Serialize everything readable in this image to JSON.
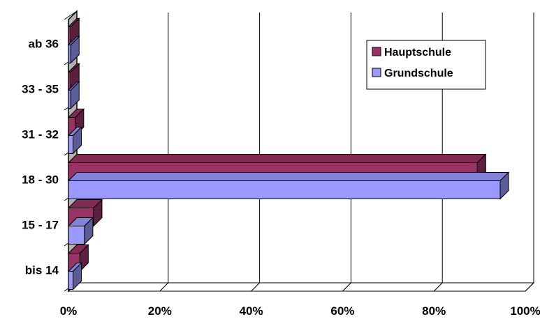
{
  "chart_data": {
    "type": "bar",
    "orientation": "horizontal",
    "style": "3d",
    "categories": [
      "ab 36",
      "33 - 35",
      "31 - 32",
      "18 - 30",
      "15 - 17",
      "bis 14"
    ],
    "series": [
      {
        "name": "Hauptschule",
        "color": "#993366",
        "values": [
          0.5,
          0.5,
          1.5,
          89.5,
          5.5,
          2.5
        ]
      },
      {
        "name": "Grundschule",
        "color": "#9999ff",
        "values": [
          0.5,
          0.5,
          1.0,
          94.5,
          3.5,
          1.0
        ]
      }
    ],
    "xlim": [
      0,
      100
    ],
    "x_ticks": [
      "0%",
      "20%",
      "40%",
      "60%",
      "80%",
      "100%"
    ],
    "grid": true,
    "legend": "top-right",
    "title": "",
    "xlabel": "",
    "ylabel": ""
  }
}
